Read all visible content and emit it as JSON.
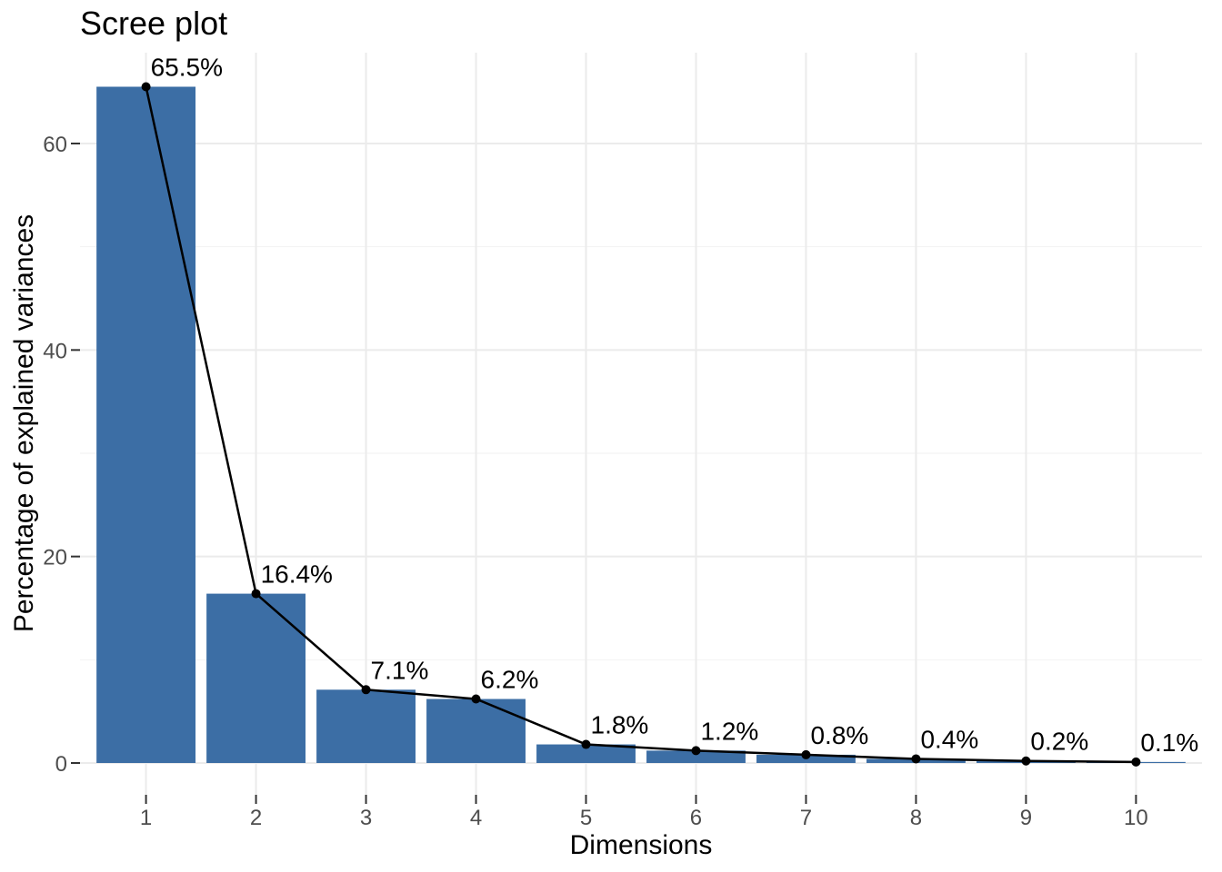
{
  "chart_data": {
    "type": "bar",
    "overlay": "line-with-points",
    "title": "Scree plot",
    "xlabel": "Dimensions",
    "ylabel": "Percentage of explained variances",
    "categories": [
      "1",
      "2",
      "3",
      "4",
      "5",
      "6",
      "7",
      "8",
      "9",
      "10"
    ],
    "values": [
      65.5,
      16.4,
      7.1,
      6.2,
      1.8,
      1.2,
      0.8,
      0.4,
      0.2,
      0.1
    ],
    "point_labels": [
      "65.5%",
      "16.4%",
      "7.1%",
      "6.2%",
      "1.8%",
      "1.2%",
      "0.8%",
      "0.4%",
      "0.2%",
      "0.1%"
    ],
    "y_major_ticks": [
      0,
      20,
      40,
      60
    ],
    "y_tick_labels": [
      "0",
      "20",
      "40",
      "60"
    ],
    "y_minor_gridlines": [
      10,
      30,
      50
    ],
    "ylim": [
      0,
      68.8
    ],
    "grid": "on",
    "legend": "none",
    "colors": {
      "bar_fill": "#3C6EA5",
      "line": "#000000",
      "point": "#000000",
      "label_text": "#000000",
      "grid_major": "#EBEBEB",
      "grid_minor": "#F2F2F2",
      "tick_mark": "#333333",
      "tick_label": "#4D4D4D",
      "axis_title": "#000000",
      "title": "#000000",
      "background": "#FFFFFF"
    }
  }
}
